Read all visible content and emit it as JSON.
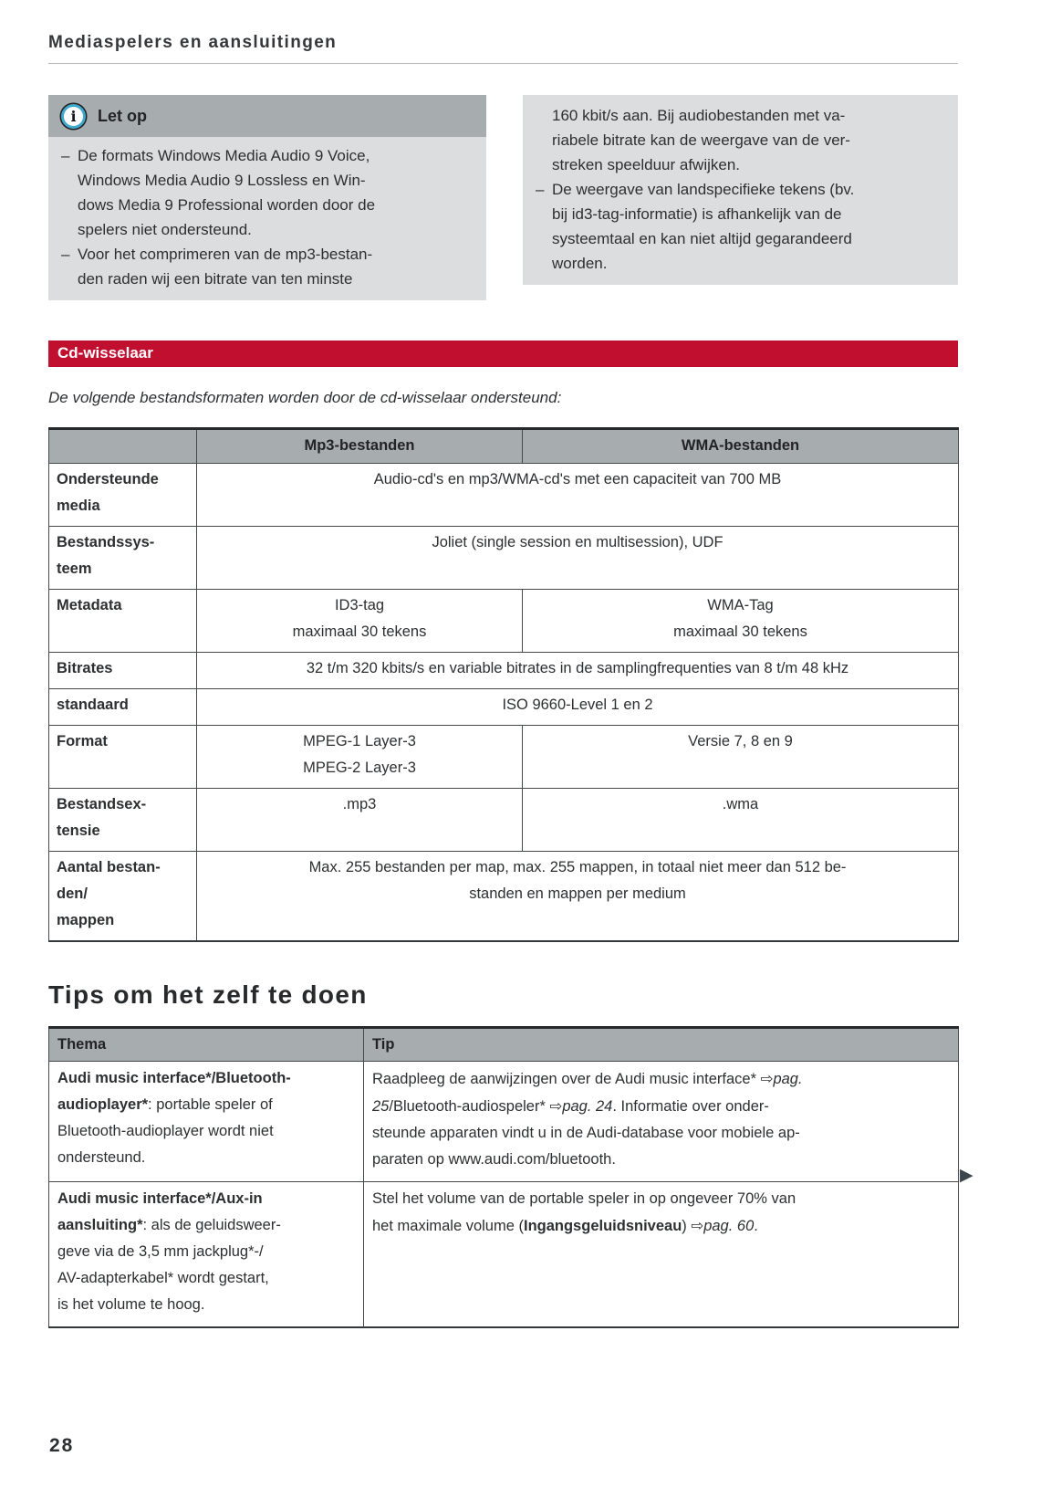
{
  "page": {
    "title": "Mediaspelers en aansluitingen",
    "number": "28",
    "continuation_marker": "▶"
  },
  "note": {
    "title": "Let op",
    "icon": "info-icon",
    "dash": "–",
    "left_items": [
      "De formats Windows Media Audio 9 Voice,\nWindows Media Audio 9 Lossless en Win-\ndows Media 9 Professional worden door de\nspelers niet ondersteund.",
      "Voor het comprimeren van de mp3-bestan-\nden raden wij een bitrate van ten minste"
    ],
    "right_continuation": "160 kbit/s aan. Bij audiobestanden met va-\nriabele bitrate kan de weergave van de ver-\nstreken speelduur afwijken.",
    "right_items": [
      "De weergave van landspecifieke tekens (bv.\nbij id3-tag-informatie) is afhankelijk van de\nsysteemtaal en kan niet altijd gegarandeerd\nworden."
    ]
  },
  "section": {
    "title": "Cd-wisselaar",
    "intro": "De volgende bestandsformaten worden door de cd-wisselaar ondersteund:"
  },
  "cd_table": {
    "col_headers": [
      "Mp3-bestanden",
      "WMA-bestanden"
    ],
    "rows": [
      {
        "label": "Ondersteunde\nmedia",
        "value": "Audio-cd's en mp3/WMA-cd's met een capaciteit van 700 MB"
      },
      {
        "label": "Bestandssys-\nteem",
        "value": "Joliet (single session en multisession), UDF"
      },
      {
        "label": "Metadata",
        "mp3": "ID3-tag\nmaximaal 30 tekens",
        "wma": "WMA-Tag\nmaximaal 30 tekens"
      },
      {
        "label": "Bitrates",
        "value": "32 t/m 320 kbits/s en variable bitrates in de samplingfrequenties van 8 t/m 48 kHz"
      },
      {
        "label": "standaard",
        "value": "ISO 9660-Level 1 en 2"
      },
      {
        "label": "Format",
        "mp3": "MPEG-1 Layer-3\nMPEG-2 Layer-3",
        "wma": "Versie 7, 8 en 9"
      },
      {
        "label": "Bestandsex-\ntensie",
        "mp3": ".mp3",
        "wma": ".wma"
      },
      {
        "label": "Aantal bestan-\nden/\nmappen",
        "value": "Max. 255 bestanden per map, max. 255 mappen, in totaal niet meer dan 512 be-\nstanden en mappen per medium"
      }
    ]
  },
  "tips": {
    "heading": "Tips om het zelf te doen",
    "col_headers": [
      "Thema",
      "Tip"
    ],
    "rows": [
      {
        "thema_bold": "Audi music interface*/Bluetooth-\naudioplayer*",
        "thema_rest": ": portable speler of\nBluetooth-audioplayer wordt niet\nondersteund.",
        "tip_p1": "Raadpleeg de aanwijzingen over de Audi music interface* ",
        "tip_arrow1": "⇨",
        "tip_i1": "pag.\n25",
        "tip_p2": "/Bluetooth-audiospeler* ",
        "tip_arrow2": "⇨",
        "tip_i2": "pag. 24",
        "tip_p3": ". Informatie over onder-\nsteunde apparaten vindt u in de Audi-database voor mobiele ap-\nparaten op www.audi.com/bluetooth."
      },
      {
        "thema_bold": "Audi music interface*/Aux-in\naansluiting*",
        "thema_rest": ": als de geluidsweer-\ngeve via de 3,5 mm jackplug*-/\nAV-adapterkabel* wordt gestart,\nis het volume te hoog.",
        "tip_p1": "Stel het volume van de portable speler in op ongeveer 70% van\nhet maximale volume (",
        "tip_bold": "Ingangsgeluidsniveau",
        "tip_p2": ") ",
        "tip_arrow": "⇨",
        "tip_i": "pag. 60",
        "tip_p3": "."
      }
    ]
  },
  "colors": {
    "accent_red": "#c00f2f",
    "header_gray": "#a7acae",
    "note_gray": "#dcddde",
    "icon_blue": "#41a8cc",
    "text": "#2d2f31"
  }
}
